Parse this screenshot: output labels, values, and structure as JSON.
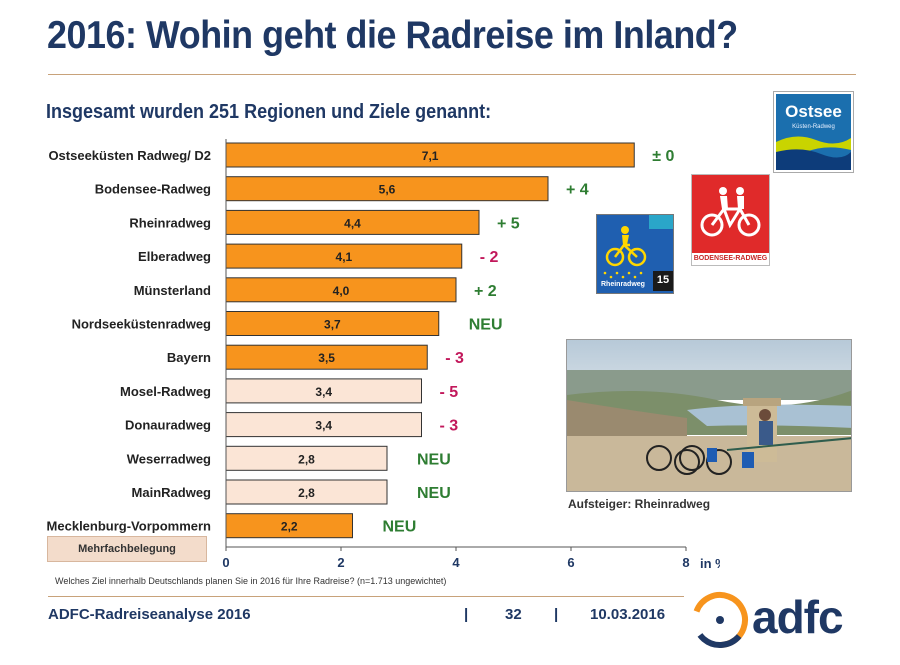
{
  "title": "2016: Wohin geht die Radreise im Inland?",
  "subtitle": "Insgesamt wurden 251 Regionen und Ziele genannt:",
  "legend_label": "Mehrfachbelegung",
  "footnote": "Welches Ziel innerhalb Deutschlands planen Sie in 2016 für Ihre Radreise? (n=1.713 ungewichtet)",
  "footer": {
    "source": "ADFC-Radreiseanalyse 2016",
    "separator": "|",
    "page": "32",
    "date": "10.03.2016"
  },
  "photo_caption": "Aufsteiger: Rheinradweg",
  "badges": {
    "ostsee_title": "Ostsee",
    "ostsee_sub": "Küsten-Radweg",
    "bodensee_label": "BODENSEE-RADWEG",
    "rhein_label": "Rheinradweg",
    "rhein_number": "15"
  },
  "logo_text": "adfc",
  "colors": {
    "title": "#1f3864",
    "bar_main": "#f7941d",
    "bar_light": "#fbe5d6",
    "bar_border": "#333333",
    "change_positive": "#2e7d32",
    "change_negative": "#c2185b",
    "change_new": "#2e7d32"
  },
  "chart_data": {
    "type": "bar",
    "orientation": "horizontal",
    "categories": [
      "Ostseeküsten Radweg/ D2",
      "Bodensee-Radweg",
      "Rheinradweg",
      "Elberadweg",
      "Münsterland",
      "Nordseeküstenradweg",
      "Bayern",
      "Mosel-Radweg",
      "Donauradweg",
      "Weserradweg",
      "MainRadweg",
      "Mecklenburg-Vorpommern"
    ],
    "values": [
      7.1,
      5.6,
      4.4,
      4.1,
      4.0,
      3.7,
      3.5,
      3.4,
      3.4,
      2.8,
      2.8,
      2.2
    ],
    "value_labels": [
      "7,1",
      "5,6",
      "4,4",
      "4,1",
      "4,0",
      "3,7",
      "3,5",
      "3,4",
      "3,4",
      "2,8",
      "2,8",
      "2,2"
    ],
    "changes": [
      "± 0",
      "+ 4",
      "+ 5",
      "- 2",
      "+ 2",
      "NEU",
      "- 3",
      "- 5",
      "- 3",
      "NEU",
      "NEU",
      "NEU"
    ],
    "change_types": [
      "neutral",
      "positive",
      "positive",
      "negative",
      "positive",
      "new",
      "negative",
      "negative",
      "negative",
      "new",
      "new",
      "new"
    ],
    "bar_styles": [
      "main",
      "main",
      "main",
      "main",
      "main",
      "main",
      "main",
      "light",
      "light",
      "light",
      "light",
      "main"
    ],
    "xlim": [
      0,
      8
    ],
    "xticks": [
      0,
      2,
      4,
      6,
      8
    ],
    "xunit": "in %",
    "grid": false
  }
}
